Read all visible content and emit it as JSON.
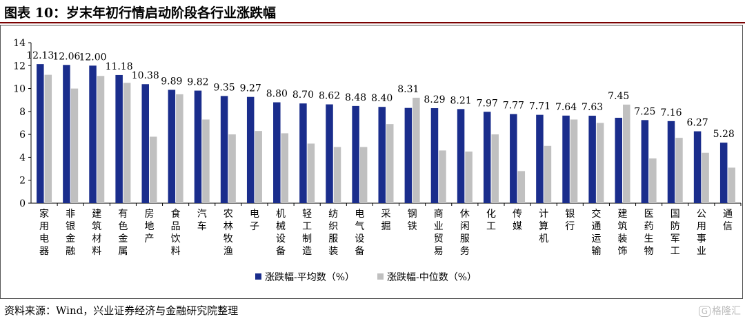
{
  "header": {
    "title": "图表 10：岁末年初行情启动阶段各行业涨跌幅"
  },
  "footer": {
    "source": "资料来源：Wind，兴业证券经济与金融研究院整理"
  },
  "watermark": {
    "text": "格隆汇",
    "icon": "logo-icon"
  },
  "chart_data": {
    "type": "bar",
    "title": "",
    "xlabel": "",
    "ylabel": "",
    "ylim": [
      0,
      14
    ],
    "yticks": [
      0,
      2,
      4,
      6,
      8,
      10,
      12,
      14
    ],
    "grid": false,
    "legend_position": "bottom",
    "categories": [
      "家用电器",
      "非银金融",
      "建筑材料",
      "有色金属",
      "房地产",
      "食品饮料",
      "汽车",
      "农林牧渔",
      "电子",
      "机械设备",
      "轻工制造",
      "纺织服装",
      "电气设备",
      "采掘",
      "钢铁",
      "商业贸易",
      "休闲服务",
      "化工",
      "传媒",
      "计算机",
      "银行",
      "交通运输",
      "建筑装饰",
      "医药生物",
      "国防军工",
      "公用事业",
      "通信"
    ],
    "series": [
      {
        "name": "涨跌幅-平均数（%）",
        "color": "#1a2d8c",
        "values": [
          12.13,
          12.06,
          12.0,
          11.18,
          10.38,
          9.89,
          9.82,
          9.35,
          9.27,
          8.8,
          8.7,
          8.62,
          8.48,
          8.4,
          8.31,
          8.29,
          8.21,
          7.97,
          7.77,
          7.71,
          7.64,
          7.63,
          7.45,
          7.25,
          7.16,
          6.27,
          5.28
        ],
        "labels": [
          "12.13",
          "12.06",
          "12.00",
          "11.18",
          "10.38",
          "9.89",
          "9.82",
          "9.35",
          "9.27",
          "8.80",
          "8.70",
          "8.62",
          "8.48",
          "8.40",
          "8.31",
          "8.29",
          "8.21",
          "7.97",
          "7.77",
          "7.71",
          "7.64",
          "7.63",
          "7.45",
          "7.25",
          "7.16",
          "6.27",
          "5.28"
        ]
      },
      {
        "name": "涨跌幅-中位数（%）",
        "color": "#c0c0c0",
        "values": [
          11.2,
          10.0,
          11.1,
          10.5,
          5.8,
          9.5,
          7.3,
          6.0,
          6.3,
          6.1,
          5.2,
          4.9,
          4.9,
          6.9,
          9.2,
          4.6,
          4.5,
          6.0,
          2.8,
          5.0,
          7.3,
          7.0,
          8.6,
          3.9,
          5.7,
          4.4,
          3.1
        ]
      }
    ]
  }
}
